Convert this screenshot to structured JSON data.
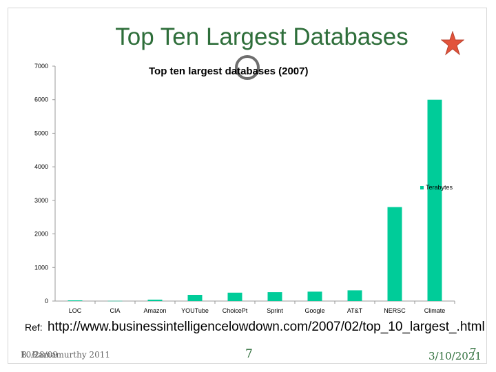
{
  "slide": {
    "title": "Top Ten Largest Databases",
    "ref_label": "Ref:",
    "ref_url": "http://www.businessintelligencelowdown.com/2007/02/top_10_largest_.html",
    "footer_left_a": "B. Ramamurthy 2011",
    "footer_left_b": "10/28/09",
    "footer_center": "7",
    "footer_right_date": "3/10/2021",
    "footer_right_page": "7"
  },
  "colors": {
    "title": "#2e6e3a",
    "bar": "#00cc99",
    "star": "#e2533b",
    "circle": "#6e6e6e"
  },
  "icons": [
    "star-icon",
    "circle-icon"
  ],
  "chart_data": {
    "type": "bar",
    "title": "Top ten largest databases (2007)",
    "categories": [
      "LOC",
      "CIA",
      "Amazon",
      "YOUTube",
      "ChoicePt",
      "Sprint",
      "Google",
      "AT&T",
      "NERSC",
      "Climate"
    ],
    "series": [
      {
        "name": "Terabytes",
        "values": [
          20,
          5,
          42,
          185,
          250,
          265,
          280,
          320,
          2800,
          6000
        ]
      }
    ],
    "yticks": [
      0,
      1000,
      2000,
      3000,
      4000,
      5000,
      6000,
      7000
    ],
    "ylim": [
      0,
      7000
    ],
    "grid": false,
    "legend": "right"
  }
}
